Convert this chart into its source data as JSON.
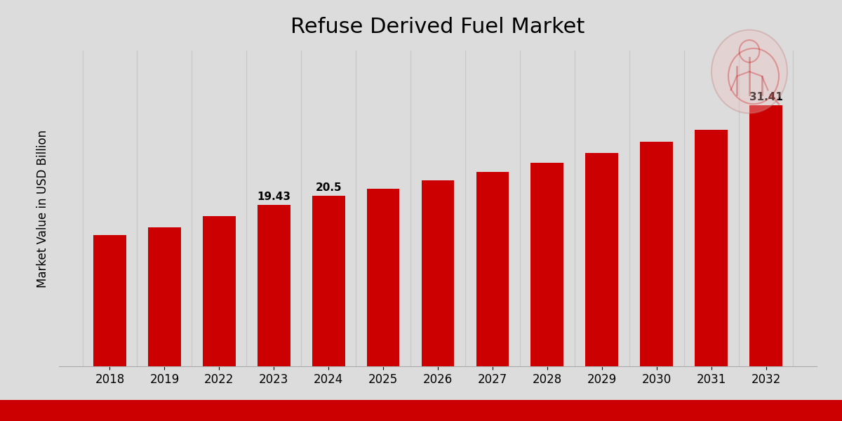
{
  "categories": [
    "2018",
    "2019",
    "2022",
    "2023",
    "2024",
    "2025",
    "2026",
    "2027",
    "2028",
    "2029",
    "2030",
    "2031",
    "2032"
  ],
  "values": [
    15.8,
    16.7,
    18.1,
    19.43,
    20.5,
    21.4,
    22.4,
    23.4,
    24.5,
    25.7,
    27.0,
    28.5,
    31.41
  ],
  "label_indices": {
    "3": "19.43",
    "4": "20.5",
    "12": "31.41"
  },
  "bar_color": "#CC0000",
  "bg_color_top": "#DCDCDC",
  "bg_color_bottom": "#E8E8E8",
  "title": "Refuse Derived Fuel Market",
  "title_fontsize": 22,
  "ylabel": "Market Value in USD Billion",
  "ylabel_fontsize": 12,
  "bar_label_fontsize": 11,
  "tick_fontsize": 12,
  "bottom_bar_color": "#CC0000",
  "grid_color": "#C8C8C8",
  "ylim_max": 38
}
